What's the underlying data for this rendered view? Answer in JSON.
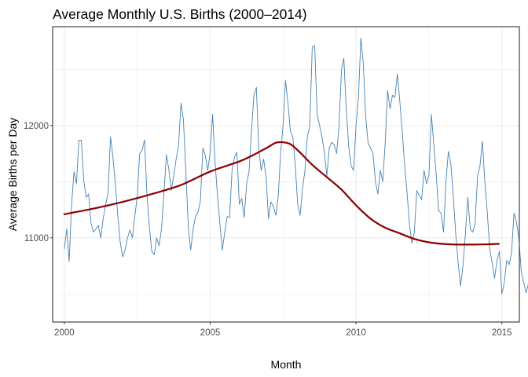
{
  "chart_data": {
    "type": "line",
    "title": "Average Monthly U.S. Births (2000–2014)",
    "xlabel": "Month",
    "ylabel": "Average Births per Day",
    "xlim": [
      1999.6,
      2015.6
    ],
    "ylim": [
      10250,
      12880
    ],
    "x_ticks": [
      2000,
      2005,
      2010,
      2015
    ],
    "x_tick_labels": [
      "2000",
      "2005",
      "2010",
      "2015"
    ],
    "y_ticks": [
      11000,
      12000
    ],
    "y_tick_labels": [
      "11000",
      "12000"
    ],
    "y_minor_gridlines": [
      10500,
      11500,
      12500
    ],
    "grid": true,
    "legend": "none",
    "colors": {
      "series": "#4682b4",
      "trend": "#8b0000",
      "grid": "#ebebeb",
      "border": "#333333"
    },
    "series": [
      {
        "style": "thin-line",
        "x_start": 2000,
        "x_step": 0.0833333,
        "values": [
          10900,
          11080,
          10790,
          11300,
          11590,
          11480,
          11870,
          11870,
          11510,
          11360,
          11390,
          11130,
          11050,
          11080,
          11110,
          11000,
          11170,
          11290,
          11400,
          11900,
          11720,
          11480,
          11200,
          10960,
          10830,
          10890,
          11000,
          11070,
          11000,
          11190,
          11370,
          11750,
          11780,
          11870,
          11380,
          11100,
          10880,
          10850,
          11000,
          10930,
          11080,
          11400,
          11740,
          11610,
          11420,
          11550,
          11700,
          11820,
          12200,
          12050,
          11590,
          11100,
          10890,
          11080,
          11190,
          11230,
          11330,
          11800,
          11730,
          11600,
          11760,
          12100,
          11680,
          11380,
          11130,
          10890,
          11050,
          11190,
          11180,
          11600,
          11720,
          11760,
          11300,
          11350,
          11180,
          11480,
          11590,
          11950,
          12270,
          12340,
          11790,
          11600,
          11700,
          11540,
          11170,
          11320,
          11280,
          11200,
          11370,
          11760,
          12000,
          12400,
          12200,
          11950,
          11900,
          11650,
          11300,
          11200,
          11440,
          11600,
          11900,
          12000,
          12700,
          12710,
          12100,
          12000,
          11900,
          11760,
          11550,
          11800,
          11850,
          11830,
          11750,
          11990,
          12490,
          12600,
          12140,
          11810,
          11640,
          11600,
          12000,
          12250,
          12780,
          12550,
          12070,
          11840,
          11800,
          11750,
          11500,
          11390,
          11600,
          11500,
          11840,
          12310,
          12150,
          12270,
          12250,
          12460,
          12220,
          11950,
          11650,
          11400,
          11120,
          10950,
          11050,
          11420,
          11380,
          11340,
          11600,
          11480,
          11560,
          12100,
          11830,
          11560,
          11240,
          11220,
          11050,
          11500,
          11770,
          11660,
          11380,
          11040,
          10780,
          10570,
          10750,
          11040,
          11360,
          11080,
          11050,
          11130,
          11550,
          11640,
          11860,
          11500,
          11230,
          10900,
          10780,
          10640,
          10800,
          10880,
          10500,
          10600,
          10800,
          10760,
          10870,
          11220,
          11140,
          11000,
          10700,
          10600,
          10510,
          10600,
          11310,
          11730,
          11700,
          11300,
          10920,
          10540,
          10400,
          10690,
          10640,
          10480,
          10350,
          10620,
          10600,
          11150,
          11330,
          11790,
          11650,
          11450,
          11100,
          10650,
          10570,
          10520,
          10460,
          10520,
          10700,
          10830,
          10990,
          11430,
          11510,
          11450,
          11260,
          10880,
          10750,
          10820,
          10660,
          10570,
          10770,
          10990,
          10990,
          11540,
          11520,
          11470,
          11690,
          11330,
          10900,
          10640,
          10840,
          10940
        ]
      },
      {
        "style": "trend",
        "x": [
          2000,
          2001,
          2002,
          2003,
          2004,
          2005,
          2006,
          2006.5,
          2007,
          2007.3,
          2007.7,
          2008,
          2008.5,
          2009,
          2009.5,
          2010,
          2010.5,
          2011,
          2011.5,
          2012,
          2012.5,
          2013,
          2013.5,
          2014,
          2014.5,
          2014.9
        ],
        "values": [
          11210,
          11260,
          11320,
          11390,
          11470,
          11590,
          11680,
          11740,
          11810,
          11850,
          11840,
          11780,
          11650,
          11540,
          11430,
          11290,
          11170,
          11090,
          11040,
          10990,
          10960,
          10945,
          10940,
          10940,
          10942,
          10946
        ]
      }
    ]
  }
}
